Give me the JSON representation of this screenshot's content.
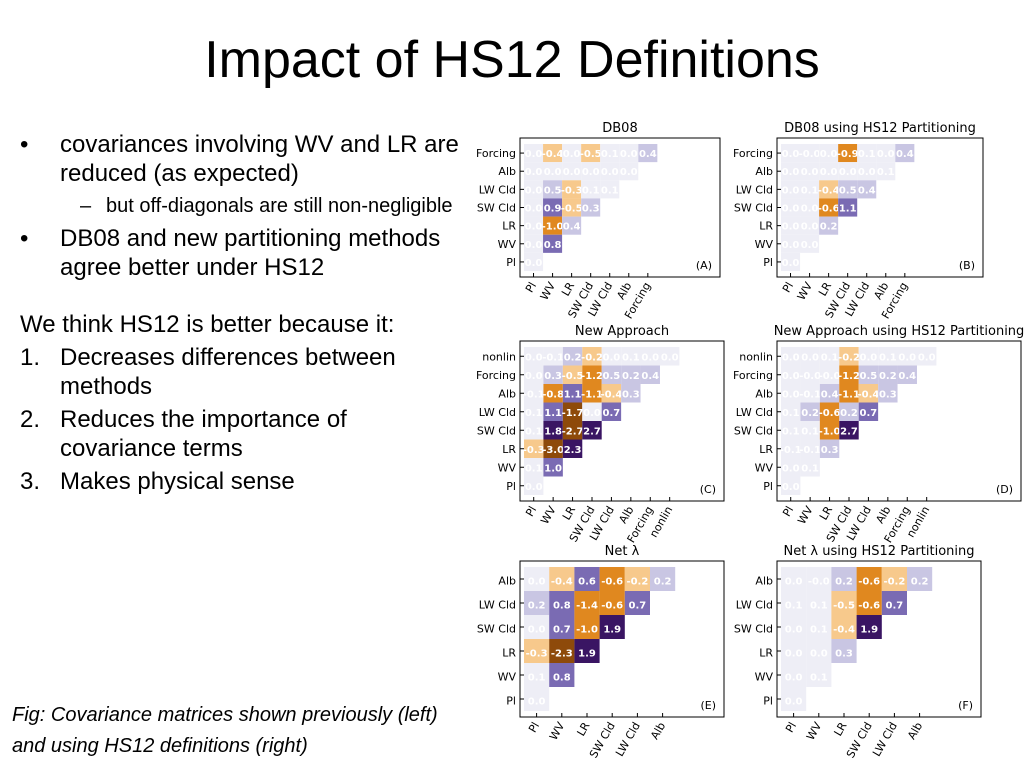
{
  "title": "Impact of HS12 Definitions",
  "bullets": [
    {
      "text": "covariances involving WV and LR are reduced (as expected)",
      "sub": [
        "but off-diagonals are still non-negligible"
      ]
    },
    {
      "text": "DB08 and new partitioning methods agree better under HS12",
      "sub": []
    }
  ],
  "reasons_intro": "We think HS12 is better because it:",
  "reasons": [
    {
      "num": "1.",
      "text": "Decreases differences between methods"
    },
    {
      "num": "2.",
      "text": "Reduces the importance of covariance terms"
    },
    {
      "num": "3.",
      "text": "Makes physical sense"
    }
  ],
  "caption": "Fig: Covariance matrices shown previously (left) and using HS12 definitions (right)",
  "colors": {
    "orange_dark": "#8e4a0a",
    "orange": "#e0881f",
    "orange_light": "#f7c98c",
    "purple_light": "#c9c6e3",
    "purple": "#7a6bb3",
    "purple_dark": "#3a1563",
    "neutral": "#eeeef6"
  },
  "panels": [
    {
      "id": "A",
      "title": "DB08",
      "label": "(A)",
      "labels": [
        "Pl",
        "WV",
        "LR",
        "SW Cld",
        "LW Cld",
        "Alb",
        "Forcing"
      ],
      "rows": [
        {
          "label": "Forcing",
          "values": [
            "0.0",
            "-0.4",
            "0.0",
            "-0.5",
            "0.1",
            "0.0",
            "0.4"
          ]
        },
        {
          "label": "Alb",
          "values": [
            "0.0",
            "0.0",
            "0.0",
            "0.0",
            "0.0",
            "0.0"
          ]
        },
        {
          "label": "LW Cld",
          "values": [
            "0.0",
            "0.5",
            "-0.3",
            "0.1",
            "0.1"
          ]
        },
        {
          "label": "SW Cld",
          "values": [
            "0.0",
            "0.9",
            "-0.5",
            "0.3"
          ]
        },
        {
          "label": "LR",
          "values": [
            "0.0",
            "-1.0",
            "0.4"
          ]
        },
        {
          "label": "WV",
          "values": [
            "0.0",
            "0.8"
          ]
        },
        {
          "label": "Pl",
          "values": [
            "0.0"
          ]
        }
      ]
    },
    {
      "id": "B",
      "title": "DB08 using HS12 Partitioning",
      "label": "(B)",
      "labels": [
        "Pl",
        "WV",
        "LR",
        "SW Cld",
        "LW Cld",
        "Alb",
        "Forcing"
      ],
      "rows": [
        {
          "label": "Forcing",
          "values": [
            "0.0",
            "-0.0",
            "0.0",
            "-0.9",
            "0.1",
            "0.0",
            "0.4"
          ]
        },
        {
          "label": "Alb",
          "values": [
            "0.0",
            "0.0",
            "0.0",
            "0.0",
            "0.0",
            "0.1"
          ]
        },
        {
          "label": "LW Cld",
          "values": [
            "0.0",
            "0.1",
            "-0.4",
            "0.5",
            "0.4"
          ]
        },
        {
          "label": "SW Cld",
          "values": [
            "0.0",
            "0.0",
            "-0.6",
            "1.1"
          ]
        },
        {
          "label": "LR",
          "values": [
            "0.0",
            "0.0",
            "0.2"
          ]
        },
        {
          "label": "WV",
          "values": [
            "0.0",
            "0.0"
          ]
        },
        {
          "label": "Pl",
          "values": [
            "0.0"
          ]
        }
      ]
    },
    {
      "id": "C",
      "title": "New Approach",
      "label": "(C)",
      "labels": [
        "Pl",
        "WV",
        "LR",
        "SW Cld",
        "LW Cld",
        "Alb",
        "Forcing",
        "nonlin"
      ],
      "rows": [
        {
          "label": "nonlin",
          "values": [
            "0.0",
            "-0.1",
            "0.2",
            "-0.2",
            "0.0",
            "0.1",
            "0.0",
            "0.0"
          ]
        },
        {
          "label": "Forcing",
          "values": [
            "0.0",
            "0.3",
            "-0.5",
            "-1.2",
            "0.5",
            "0.2",
            "0.4"
          ]
        },
        {
          "label": "Alb",
          "values": [
            "-0.1",
            "-0.8",
            "1.1",
            "-1.1",
            "-0.4",
            "0.3"
          ]
        },
        {
          "label": "LW Cld",
          "values": [
            "0.1",
            "1.1",
            "-1.7",
            "0.0",
            "0.7"
          ]
        },
        {
          "label": "SW Cld",
          "values": [
            "0.1",
            "1.8",
            "-2.7",
            "2.7"
          ]
        },
        {
          "label": "LR",
          "values": [
            "-0.3",
            "-3.0",
            "2.3"
          ]
        },
        {
          "label": "WV",
          "values": [
            "0.1",
            "1.0"
          ]
        },
        {
          "label": "Pl",
          "values": [
            "0.0"
          ]
        }
      ]
    },
    {
      "id": "D",
      "title": "New Approach using HS12 Partitioning",
      "label": "(D)",
      "labels": [
        "Pl",
        "WV",
        "LR",
        "SW Cld",
        "LW Cld",
        "Alb",
        "Forcing",
        "nonlin"
      ],
      "rows": [
        {
          "label": "nonlin",
          "values": [
            "0.0",
            "0.0",
            "0.1",
            "-0.2",
            "0.0",
            "0.1",
            "0.0",
            "0.0"
          ]
        },
        {
          "label": "Forcing",
          "values": [
            "0.0",
            "-0.0",
            "-0.0",
            "-1.2",
            "0.5",
            "0.2",
            "0.4"
          ]
        },
        {
          "label": "Alb",
          "values": [
            "0.0",
            "-0.1",
            "0.4",
            "-1.1",
            "-0.4",
            "0.3"
          ]
        },
        {
          "label": "LW Cld",
          "values": [
            "0.1",
            "0.2",
            "-0.6",
            "0.2",
            "0.7"
          ]
        },
        {
          "label": "SW Cld",
          "values": [
            "0.1",
            "0.1",
            "-1.0",
            "2.7"
          ]
        },
        {
          "label": "LR",
          "values": [
            "-0.1",
            "-0.1",
            "0.3"
          ]
        },
        {
          "label": "WV",
          "values": [
            "0.0",
            "0.1"
          ]
        },
        {
          "label": "Pl",
          "values": [
            "0.0"
          ]
        }
      ]
    },
    {
      "id": "E",
      "title": "Net λ",
      "label": "(E)",
      "labels": [
        "Pl",
        "WV",
        "LR",
        "SW Cld",
        "LW Cld",
        "Alb"
      ],
      "rows": [
        {
          "label": "Alb",
          "values": [
            "0.0",
            "-0.4",
            "0.6",
            "-0.6",
            "-0.2",
            "0.2"
          ]
        },
        {
          "label": "LW Cld",
          "values": [
            "0.2",
            "0.8",
            "-1.4",
            "-0.6",
            "0.7"
          ]
        },
        {
          "label": "SW Cld",
          "values": [
            "0.0",
            "0.7",
            "-1.0",
            "1.9"
          ]
        },
        {
          "label": "LR",
          "values": [
            "-0.3",
            "-2.3",
            "1.9"
          ]
        },
        {
          "label": "WV",
          "values": [
            "0.1",
            "0.8"
          ]
        },
        {
          "label": "Pl",
          "values": [
            "0.0"
          ]
        }
      ]
    },
    {
      "id": "F",
      "title": "Net λ using HS12 Partitioning",
      "label": "(F)",
      "labels": [
        "Pl",
        "WV",
        "LR",
        "SW Cld",
        "LW Cld",
        "Alb"
      ],
      "rows": [
        {
          "label": "Alb",
          "values": [
            "0.0",
            "-0.0",
            "0.2",
            "-0.6",
            "-0.2",
            "0.2"
          ]
        },
        {
          "label": "LW Cld",
          "values": [
            "0.1",
            "0.1",
            "-0.5",
            "-0.6",
            "0.7"
          ]
        },
        {
          "label": "SW Cld",
          "values": [
            "0.0",
            "0.1",
            "-0.4",
            "1.9"
          ]
        },
        {
          "label": "LR",
          "values": [
            "0.0",
            "0.0",
            "0.3"
          ]
        },
        {
          "label": "WV",
          "values": [
            "0.0",
            "0.1"
          ]
        },
        {
          "label": "Pl",
          "values": [
            "0.0"
          ]
        }
      ]
    }
  ]
}
